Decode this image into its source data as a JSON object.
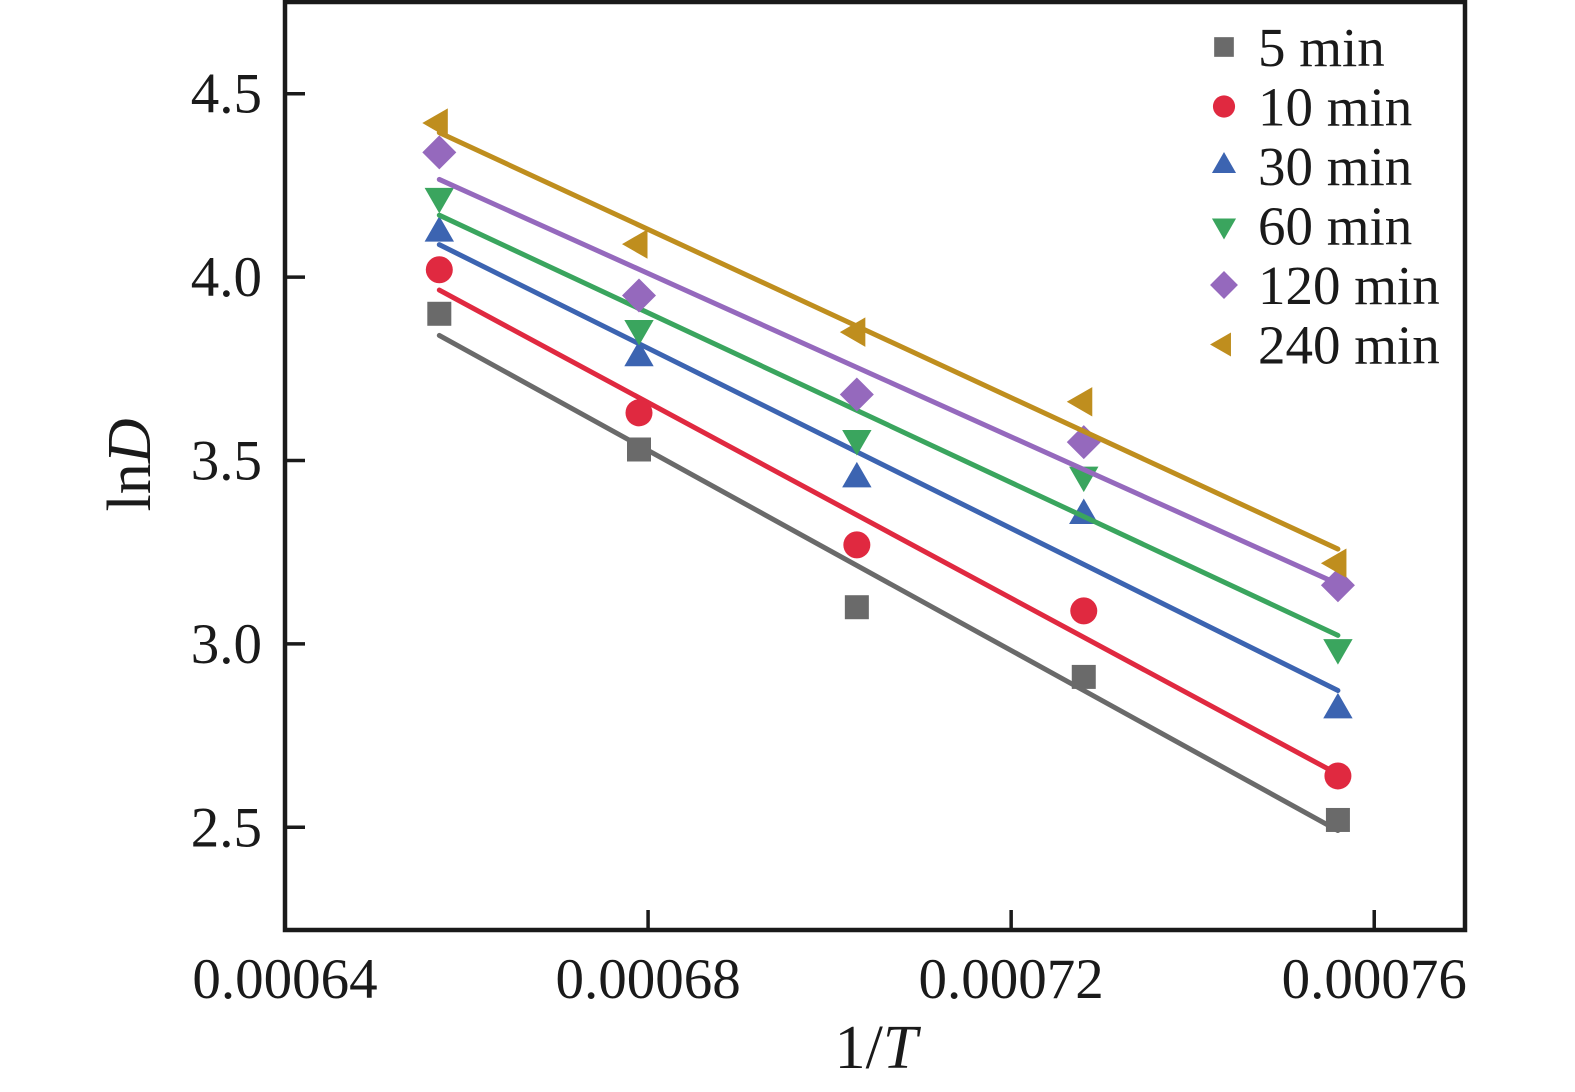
{
  "chart_data": {
    "type": "scatter",
    "title": "",
    "xlabel": {
      "plain": "1/",
      "italic": "T"
    },
    "ylabel": {
      "plain": "ln",
      "italic": "D"
    },
    "x_range": [
      0.00064,
      0.00077
    ],
    "y_range": [
      2.22,
      4.75
    ],
    "x_ticks": [
      {
        "value": 0.00064,
        "label": "0.00064"
      },
      {
        "value": 0.00068,
        "label": "0.00068"
      },
      {
        "value": 0.00072,
        "label": "0.00072"
      },
      {
        "value": 0.00076,
        "label": "0.00076"
      }
    ],
    "y_ticks": [
      {
        "value": 2.5,
        "label": "2.5"
      },
      {
        "value": 3.0,
        "label": "3.0"
      },
      {
        "value": 3.5,
        "label": "3.5"
      },
      {
        "value": 4.0,
        "label": "4.0"
      },
      {
        "value": 4.5,
        "label": "4.5"
      }
    ],
    "x": [
      0.000657,
      0.000679,
      0.000703,
      0.000728,
      0.000756
    ],
    "series": [
      {
        "name": "5 min",
        "marker": "square",
        "color": "#6a6a6a",
        "values": [
          3.9,
          3.53,
          3.1,
          2.91,
          2.52
        ]
      },
      {
        "name": "10 min",
        "marker": "circle",
        "color": "#e02940",
        "values": [
          4.02,
          3.63,
          3.27,
          3.09,
          2.64
        ]
      },
      {
        "name": "30 min",
        "marker": "triangle-up",
        "color": "#3c64b1",
        "values": [
          4.12,
          3.78,
          3.45,
          3.35,
          2.82
        ]
      },
      {
        "name": "60 min",
        "marker": "triangle-down",
        "color": "#3aa55e",
        "values": [
          4.22,
          3.86,
          3.56,
          3.46,
          2.99
        ]
      },
      {
        "name": "120 min",
        "marker": "diamond",
        "color": "#9569bd",
        "values": [
          4.34,
          3.95,
          3.68,
          3.55,
          3.16
        ]
      },
      {
        "name": "240 min",
        "marker": "triangle-left",
        "color": "#bf8e1e",
        "values": [
          4.42,
          4.09,
          3.85,
          3.66,
          3.22
        ]
      }
    ],
    "fit_lines": "linear-regression-per-series",
    "grid": "off",
    "legend_position": "top-right",
    "frame_color": "#1a1a1a",
    "background_color": "#ffffff"
  }
}
